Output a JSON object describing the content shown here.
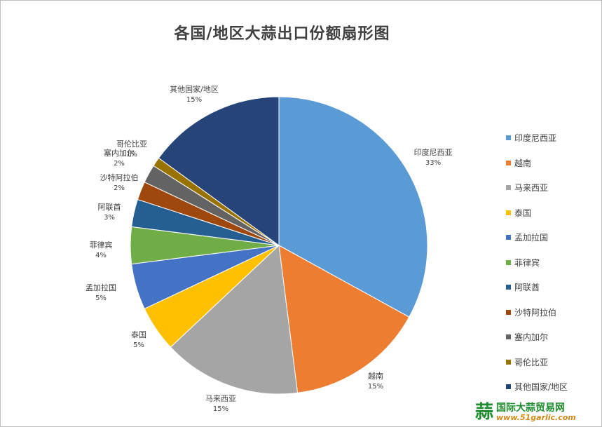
{
  "chart_data": {
    "type": "pie",
    "title": "各国/地区大蒜出口份额扇形图",
    "legend_position": "right",
    "slices": [
      {
        "label": "印度尼西亚",
        "value": 33,
        "display": "33%",
        "color": "#5b9bd5"
      },
      {
        "label": "越南",
        "value": 15,
        "display": "15%",
        "color": "#ed7d31"
      },
      {
        "label": "马来西亚",
        "value": 15,
        "display": "15%",
        "color": "#a5a5a5"
      },
      {
        "label": "泰国",
        "value": 5,
        "display": "5%",
        "color": "#ffc000"
      },
      {
        "label": "孟加拉国",
        "value": 5,
        "display": "5%",
        "color": "#4472c4"
      },
      {
        "label": "菲律宾",
        "value": 4,
        "display": "4%",
        "color": "#70ad47"
      },
      {
        "label": "阿联酋",
        "value": 3,
        "display": "3%",
        "color": "#255e91"
      },
      {
        "label": "沙特阿拉伯",
        "value": 2,
        "display": "2%",
        "color": "#9e480e"
      },
      {
        "label": "塞内加尔",
        "value": 2,
        "display": "2%",
        "color": "#636363"
      },
      {
        "label": "哥伦比亚",
        "value": 1,
        "display": "1%",
        "color": "#997300"
      },
      {
        "label": "其他国家/地区",
        "value": 15,
        "display": "15%",
        "color": "#264478"
      }
    ]
  },
  "watermark": {
    "logo_char": "蒜",
    "name": "国际大蒜贸易网",
    "url": "www.51garlic.com"
  }
}
